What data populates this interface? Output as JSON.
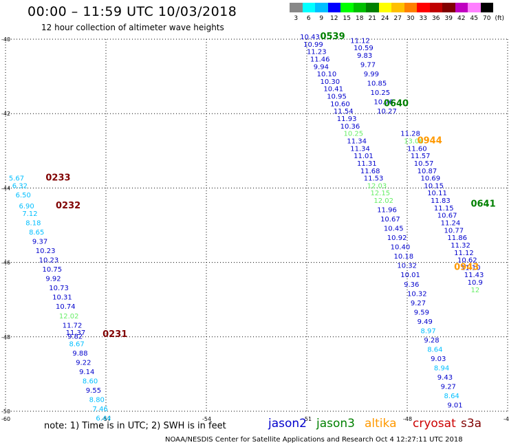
{
  "title": "00:00 – 11:59 UTC 10/03/2018",
  "subtitle": "12 hour collection of altimeter wave heights",
  "note": "note:  1) Time is in UTC;  2) SWH is in feet",
  "footer": "NOAA/NESDIS Center for Satellite Applications and Research    Oct  4 12:27:11 UTC 2018",
  "colorbar": {
    "labels": [
      "3",
      "6",
      "9",
      "12",
      "15",
      "18",
      "21",
      "24",
      "27",
      "30",
      "33",
      "36",
      "39",
      "42",
      "45",
      "70",
      "(ft)"
    ],
    "colors": [
      "#888888",
      "#00ffff",
      "#00bfff",
      "#0000ff",
      "#00ff00",
      "#00c000",
      "#008000",
      "#ffff00",
      "#ffc000",
      "#ff8000",
      "#ff0000",
      "#c00000",
      "#800000",
      "#c000c0",
      "#ff80ff",
      "#000000"
    ]
  },
  "legend": [
    {
      "name": "jason2",
      "color": "#0000cc"
    },
    {
      "name": "jason3",
      "color": "#008000"
    },
    {
      "name": "altika",
      "color": "#ff9900"
    },
    {
      "name": "cryosat",
      "color": "#cc0000"
    },
    {
      "name": "s3a",
      "color": "#800000"
    }
  ],
  "chart_data": {
    "type": "scatter",
    "xlim": [
      -60,
      -45
    ],
    "ylim": [
      -50,
      -40
    ],
    "x_ticks": [
      "-60",
      "-57",
      "-54",
      "-51",
      "-48",
      "-45"
    ],
    "y_ticks": [
      "-40",
      "-42",
      "-44",
      "-46",
      "-48",
      "-50"
    ],
    "time_labels": [
      {
        "text": "0539",
        "x": -50.6,
        "y": -40.0,
        "color": "#008000"
      },
      {
        "text": "0640",
        "x": -48.7,
        "y": -41.8,
        "color": "#008000"
      },
      {
        "text": "0944",
        "x": -47.7,
        "y": -42.8,
        "color": "#ff9900"
      },
      {
        "text": "0641",
        "x": -46.1,
        "y": -44.5,
        "color": "#008000"
      },
      {
        "text": "0943",
        "x": -46.6,
        "y": -46.2,
        "color": "#ff9900"
      },
      {
        "text": "0233",
        "x": -58.8,
        "y": -43.8,
        "color": "#800000"
      },
      {
        "text": "0232",
        "x": -58.5,
        "y": -44.55,
        "color": "#800000"
      },
      {
        "text": "0231",
        "x": -57.1,
        "y": -48.0,
        "color": "#800000"
      }
    ],
    "series": [
      {
        "name": "s3a",
        "values": [
          {
            "x": -59.9,
            "y": -43.8,
            "v": "5.67",
            "c": "#00bfff"
          },
          {
            "x": -59.8,
            "y": -44.0,
            "v": "6.32",
            "c": "#00bfff"
          },
          {
            "x": -59.7,
            "y": -44.25,
            "v": "6.50",
            "c": "#00bfff"
          },
          {
            "x": -59.6,
            "y": -44.55,
            "v": "6.90",
            "c": "#00bfff"
          },
          {
            "x": -59.5,
            "y": -44.75,
            "v": "7.12",
            "c": "#00bfff"
          },
          {
            "x": -59.4,
            "y": -45.0,
            "v": "8.18",
            "c": "#00bfff"
          },
          {
            "x": -59.3,
            "y": -45.25,
            "v": "8.65",
            "c": "#00bfff"
          },
          {
            "x": -59.2,
            "y": -45.5,
            "v": "9.37",
            "c": "#0000cc"
          },
          {
            "x": -59.1,
            "y": -45.75,
            "v": "10.23",
            "c": "#0000cc"
          },
          {
            "x": -59.0,
            "y": -46.0,
            "v": "10.23",
            "c": "#0000cc"
          },
          {
            "x": -58.9,
            "y": -46.25,
            "v": "10.75",
            "c": "#0000cc"
          },
          {
            "x": -58.8,
            "y": -46.5,
            "v": "9.92",
            "c": "#0000cc"
          },
          {
            "x": -58.7,
            "y": -46.75,
            "v": "10.73",
            "c": "#0000cc"
          },
          {
            "x": -58.6,
            "y": -47.0,
            "v": "10.31",
            "c": "#0000cc"
          },
          {
            "x": -58.5,
            "y": -47.25,
            "v": "10.74",
            "c": "#0000cc"
          },
          {
            "x": -58.4,
            "y": -47.5,
            "v": "12.02",
            "c": "#66ee66"
          },
          {
            "x": -58.3,
            "y": -47.75,
            "v": "11.72",
            "c": "#0000cc"
          },
          {
            "x": -58.2,
            "y": -47.95,
            "v": "11.37",
            "c": "#0000cc"
          },
          {
            "x": -58.15,
            "y": -48.05,
            "v": "9.82",
            "c": "#0000cc"
          },
          {
            "x": -58.1,
            "y": -48.25,
            "v": "8.67",
            "c": "#00bfff"
          },
          {
            "x": -58.0,
            "y": -48.5,
            "v": "9.88",
            "c": "#0000cc"
          },
          {
            "x": -57.9,
            "y": -48.75,
            "v": "9.22",
            "c": "#0000cc"
          },
          {
            "x": -57.8,
            "y": -49.0,
            "v": "9.14",
            "c": "#0000cc"
          },
          {
            "x": -57.7,
            "y": -49.25,
            "v": "8.60",
            "c": "#00bfff"
          },
          {
            "x": -57.6,
            "y": -49.5,
            "v": "9.55",
            "c": "#0000cc"
          },
          {
            "x": -57.5,
            "y": -49.75,
            "v": "8.80",
            "c": "#00bfff"
          },
          {
            "x": -57.4,
            "y": -50.0,
            "v": "7.46",
            "c": "#00bfff"
          },
          {
            "x": -57.3,
            "y": -50.25,
            "v": "6.44",
            "c": "#00bfff"
          }
        ]
      },
      {
        "name": "jason3",
        "values": [
          {
            "x": -51.2,
            "y": -40.0,
            "v": "10.43",
            "c": "#0000cc"
          },
          {
            "x": -51.1,
            "y": -40.2,
            "v": "10.99",
            "c": "#0000cc"
          },
          {
            "x": -51.0,
            "y": -40.4,
            "v": "11.23",
            "c": "#0000cc"
          },
          {
            "x": -50.9,
            "y": -40.6,
            "v": "11.46",
            "c": "#0000cc"
          },
          {
            "x": -50.8,
            "y": -40.8,
            "v": "9.94",
            "c": "#0000cc"
          },
          {
            "x": -50.7,
            "y": -41.0,
            "v": "10.10",
            "c": "#0000cc"
          },
          {
            "x": -50.6,
            "y": -41.2,
            "v": "10.30",
            "c": "#0000cc"
          },
          {
            "x": -50.5,
            "y": -41.4,
            "v": "10.41",
            "c": "#0000cc"
          },
          {
            "x": -50.4,
            "y": -41.6,
            "v": "10.95",
            "c": "#0000cc"
          },
          {
            "x": -50.3,
            "y": -41.8,
            "v": "10.60",
            "c": "#0000cc"
          },
          {
            "x": -50.2,
            "y": -42.0,
            "v": "11.54",
            "c": "#0000cc"
          },
          {
            "x": -50.1,
            "y": -42.2,
            "v": "11.93",
            "c": "#0000cc"
          },
          {
            "x": -50.0,
            "y": -42.4,
            "v": "10.36",
            "c": "#0000cc"
          },
          {
            "x": -49.9,
            "y": -42.6,
            "v": "10.25",
            "c": "#66ee66"
          },
          {
            "x": -49.8,
            "y": -42.8,
            "v": "11.34",
            "c": "#0000cc"
          },
          {
            "x": -49.7,
            "y": -43.0,
            "v": "11.34",
            "c": "#0000cc"
          },
          {
            "x": -49.6,
            "y": -43.2,
            "v": "11.01",
            "c": "#0000cc"
          },
          {
            "x": -49.5,
            "y": -43.4,
            "v": "11.31",
            "c": "#0000cc"
          },
          {
            "x": -49.4,
            "y": -43.6,
            "v": "11.68",
            "c": "#0000cc"
          },
          {
            "x": -49.3,
            "y": -43.8,
            "v": "11.53",
            "c": "#0000cc"
          },
          {
            "x": -49.2,
            "y": -44.0,
            "v": "12.03",
            "c": "#66ee66"
          },
          {
            "x": -49.1,
            "y": -44.2,
            "v": "12.15",
            "c": "#66ee66"
          },
          {
            "x": -49.0,
            "y": -44.4,
            "v": "12.02",
            "c": "#66ee66"
          },
          {
            "x": -48.9,
            "y": -44.65,
            "v": "11.96",
            "c": "#0000cc"
          },
          {
            "x": -48.8,
            "y": -44.9,
            "v": "10.67",
            "c": "#0000cc"
          },
          {
            "x": -48.7,
            "y": -45.15,
            "v": "10.45",
            "c": "#0000cc"
          },
          {
            "x": -48.6,
            "y": -45.4,
            "v": "10.92",
            "c": "#0000cc"
          },
          {
            "x": -48.5,
            "y": -45.65,
            "v": "10.40",
            "c": "#0000cc"
          },
          {
            "x": -48.4,
            "y": -45.9,
            "v": "10.18",
            "c": "#0000cc"
          },
          {
            "x": -48.3,
            "y": -46.15,
            "v": "10.32",
            "c": "#0000cc"
          },
          {
            "x": -48.2,
            "y": -46.4,
            "v": "10.01",
            "c": "#0000cc"
          },
          {
            "x": -48.1,
            "y": -46.65,
            "v": "9.36",
            "c": "#0000cc"
          },
          {
            "x": -48.0,
            "y": -46.9,
            "v": "10.32",
            "c": "#0000cc"
          },
          {
            "x": -47.9,
            "y": -47.15,
            "v": "9.27",
            "c": "#0000cc"
          },
          {
            "x": -47.8,
            "y": -47.4,
            "v": "9.59",
            "c": "#0000cc"
          },
          {
            "x": -47.7,
            "y": -47.65,
            "v": "9.49",
            "c": "#0000cc"
          },
          {
            "x": -47.6,
            "y": -47.9,
            "v": "8.97",
            "c": "#00bfff"
          },
          {
            "x": -47.5,
            "y": -48.15,
            "v": "9.28",
            "c": "#0000cc"
          },
          {
            "x": -47.4,
            "y": -48.4,
            "v": "8.64",
            "c": "#00bfff"
          },
          {
            "x": -47.3,
            "y": -48.65,
            "v": "9.03",
            "c": "#0000cc"
          },
          {
            "x": -47.2,
            "y": -48.9,
            "v": "8.94",
            "c": "#00bfff"
          },
          {
            "x": -47.1,
            "y": -49.15,
            "v": "9.43",
            "c": "#0000cc"
          },
          {
            "x": -47.0,
            "y": -49.4,
            "v": "9.27",
            "c": "#0000cc"
          },
          {
            "x": -46.9,
            "y": -49.65,
            "v": "8.64",
            "c": "#00bfff"
          },
          {
            "x": -46.8,
            "y": -49.9,
            "v": "9.01",
            "c": "#0000cc"
          }
        ]
      },
      {
        "name": "jason2",
        "values": [
          {
            "x": -49.7,
            "y": -40.1,
            "v": "11.12",
            "c": "#0000cc"
          },
          {
            "x": -49.6,
            "y": -40.3,
            "v": "10.59",
            "c": "#0000cc"
          },
          {
            "x": -49.5,
            "y": -40.5,
            "v": "9.83",
            "c": "#0000cc"
          },
          {
            "x": -49.4,
            "y": -40.75,
            "v": "9.77",
            "c": "#0000cc"
          },
          {
            "x": -49.3,
            "y": -41.0,
            "v": "9.99",
            "c": "#0000cc"
          },
          {
            "x": -49.2,
            "y": -41.25,
            "v": "10.85",
            "c": "#0000cc"
          },
          {
            "x": -49.1,
            "y": -41.5,
            "v": "10.25",
            "c": "#0000cc"
          },
          {
            "x": -49.0,
            "y": -41.75,
            "v": "10.76",
            "c": "#0000cc"
          },
          {
            "x": -48.9,
            "y": -42.0,
            "v": "10.27",
            "c": "#0000cc"
          },
          {
            "x": -48.2,
            "y": -42.6,
            "v": "11.28",
            "c": "#0000cc"
          },
          {
            "x": -48.1,
            "y": -42.8,
            "v": "13.06",
            "c": "#66ee66"
          },
          {
            "x": -48.0,
            "y": -43.0,
            "v": "11.60",
            "c": "#0000cc"
          },
          {
            "x": -47.9,
            "y": -43.2,
            "v": "11.57",
            "c": "#0000cc"
          },
          {
            "x": -47.8,
            "y": -43.4,
            "v": "10.57",
            "c": "#0000cc"
          },
          {
            "x": -47.7,
            "y": -43.6,
            "v": "10.87",
            "c": "#0000cc"
          },
          {
            "x": -47.6,
            "y": -43.8,
            "v": "10.69",
            "c": "#0000cc"
          },
          {
            "x": -47.5,
            "y": -44.0,
            "v": "10.15",
            "c": "#0000cc"
          },
          {
            "x": -47.4,
            "y": -44.2,
            "v": "10.11",
            "c": "#0000cc"
          },
          {
            "x": -47.3,
            "y": -44.4,
            "v": "11.83",
            "c": "#0000cc"
          },
          {
            "x": -47.2,
            "y": -44.6,
            "v": "11.15",
            "c": "#0000cc"
          },
          {
            "x": -47.1,
            "y": -44.8,
            "v": "10.67",
            "c": "#0000cc"
          },
          {
            "x": -47.0,
            "y": -45.0,
            "v": "11.24",
            "c": "#0000cc"
          },
          {
            "x": -46.9,
            "y": -45.2,
            "v": "10.77",
            "c": "#0000cc"
          },
          {
            "x": -46.8,
            "y": -45.4,
            "v": "11.86",
            "c": "#0000cc"
          },
          {
            "x": -46.7,
            "y": -45.6,
            "v": "11.32",
            "c": "#0000cc"
          },
          {
            "x": -46.6,
            "y": -45.8,
            "v": "11.12",
            "c": "#0000cc"
          },
          {
            "x": -46.5,
            "y": -46.0,
            "v": "10.62",
            "c": "#0000cc"
          },
          {
            "x": -46.4,
            "y": -46.2,
            "v": "11.10",
            "c": "#0000cc"
          },
          {
            "x": -46.3,
            "y": -46.4,
            "v": "11.43",
            "c": "#0000cc"
          },
          {
            "x": -46.2,
            "y": -46.6,
            "v": "10.9",
            "c": "#0000cc"
          },
          {
            "x": -46.1,
            "y": -46.8,
            "v": "12",
            "c": "#66ee66"
          }
        ]
      }
    ]
  }
}
